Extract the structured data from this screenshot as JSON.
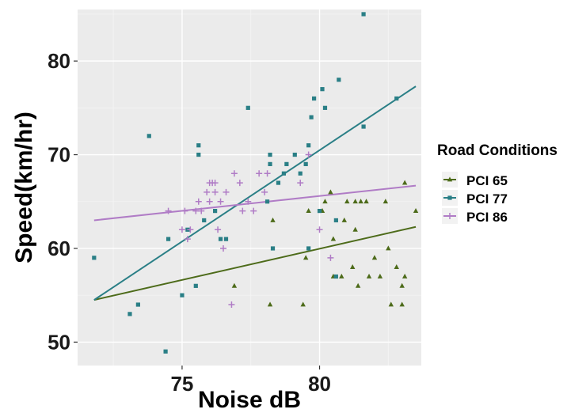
{
  "chart_data": {
    "type": "scatter",
    "title": "",
    "xlabel": "Noise dB",
    "ylabel": "Speed(km/hr)",
    "xlim": [
      71.2,
      83.7
    ],
    "ylim": [
      47.5,
      85.5
    ],
    "x_ticks": [
      75,
      80
    ],
    "y_ticks": [
      50,
      60,
      70,
      80
    ],
    "x_tick_labels": [
      "75",
      "80"
    ],
    "y_tick_labels": [
      "50",
      "60",
      "70",
      "80"
    ],
    "grid": true,
    "legend": {
      "title": "Road Conditions",
      "position": "right"
    },
    "series": [
      {
        "name": "PCI 65",
        "color": "#4d6b1a",
        "marker": "triangle",
        "trend": [
          [
            71.8,
            54.5
          ],
          [
            83.5,
            62.3
          ]
        ],
        "points": [
          [
            76.9,
            56
          ],
          [
            78.3,
            63
          ],
          [
            78.2,
            54
          ],
          [
            79.4,
            54
          ],
          [
            79.5,
            59
          ],
          [
            79.6,
            64
          ],
          [
            80.1,
            64
          ],
          [
            80.4,
            66
          ],
          [
            80.5,
            61
          ],
          [
            80.5,
            57
          ],
          [
            80.8,
            57
          ],
          [
            80.9,
            63
          ],
          [
            81.0,
            65
          ],
          [
            81.2,
            58
          ],
          [
            81.3,
            65
          ],
          [
            81.3,
            62
          ],
          [
            81.4,
            56
          ],
          [
            81.7,
            65
          ],
          [
            81.8,
            57
          ],
          [
            82.0,
            59
          ],
          [
            82.2,
            57
          ],
          [
            82.4,
            65
          ],
          [
            82.5,
            60
          ],
          [
            82.6,
            54
          ],
          [
            82.8,
            58
          ],
          [
            83.0,
            56
          ],
          [
            83.0,
            54
          ],
          [
            83.1,
            67
          ],
          [
            83.1,
            57
          ],
          [
            83.5,
            64
          ],
          [
            80.2,
            65
          ],
          [
            81.5,
            65
          ]
        ]
      },
      {
        "name": "PCI 77",
        "color": "#2a7f86",
        "marker": "square",
        "trend": [
          [
            71.8,
            54.5
          ],
          [
            83.5,
            77.3
          ]
        ],
        "points": [
          [
            71.8,
            59
          ],
          [
            73.1,
            53
          ],
          [
            73.4,
            54
          ],
          [
            73.8,
            72
          ],
          [
            74.4,
            49
          ],
          [
            74.5,
            61
          ],
          [
            75.0,
            55
          ],
          [
            75.2,
            62
          ],
          [
            75.5,
            56
          ],
          [
            75.6,
            70
          ],
          [
            75.6,
            71
          ],
          [
            75.8,
            63
          ],
          [
            76.2,
            64
          ],
          [
            76.4,
            61
          ],
          [
            76.6,
            61
          ],
          [
            77.4,
            75
          ],
          [
            78.1,
            65
          ],
          [
            78.2,
            69
          ],
          [
            78.2,
            70
          ],
          [
            78.3,
            60
          ],
          [
            78.5,
            67
          ],
          [
            78.7,
            68
          ],
          [
            78.8,
            69
          ],
          [
            79.1,
            70
          ],
          [
            79.3,
            68
          ],
          [
            79.5,
            69
          ],
          [
            79.6,
            71
          ],
          [
            79.7,
            74
          ],
          [
            79.8,
            76
          ],
          [
            80.0,
            64
          ],
          [
            80.1,
            77
          ],
          [
            80.2,
            75
          ],
          [
            80.6,
            63
          ],
          [
            80.7,
            78
          ],
          [
            81.6,
            73
          ],
          [
            81.6,
            85
          ],
          [
            82.8,
            76
          ],
          [
            79.6,
            60
          ],
          [
            80.6,
            57
          ]
        ]
      },
      {
        "name": "PCI 86",
        "color": "#b07cc6",
        "marker": "cross",
        "trend": [
          [
            71.8,
            63.0
          ],
          [
            83.5,
            66.7
          ]
        ],
        "points": [
          [
            74.5,
            64
          ],
          [
            75.0,
            62
          ],
          [
            75.1,
            64
          ],
          [
            75.2,
            61
          ],
          [
            75.5,
            64
          ],
          [
            75.6,
            65
          ],
          [
            75.7,
            64
          ],
          [
            75.9,
            66
          ],
          [
            76.0,
            65
          ],
          [
            76.1,
            67
          ],
          [
            76.2,
            66
          ],
          [
            76.2,
            67
          ],
          [
            76.3,
            62
          ],
          [
            76.4,
            65
          ],
          [
            76.5,
            60
          ],
          [
            76.6,
            66
          ],
          [
            76.8,
            54
          ],
          [
            76.9,
            68
          ],
          [
            77.1,
            67
          ],
          [
            77.2,
            64
          ],
          [
            77.4,
            65
          ],
          [
            77.6,
            64
          ],
          [
            77.8,
            68
          ],
          [
            78.0,
            66
          ],
          [
            78.1,
            68
          ],
          [
            79.3,
            67
          ],
          [
            79.6,
            70
          ],
          [
            80.0,
            62
          ],
          [
            80.4,
            59
          ],
          [
            75.3,
            62
          ],
          [
            76.0,
            67
          ]
        ]
      }
    ]
  }
}
